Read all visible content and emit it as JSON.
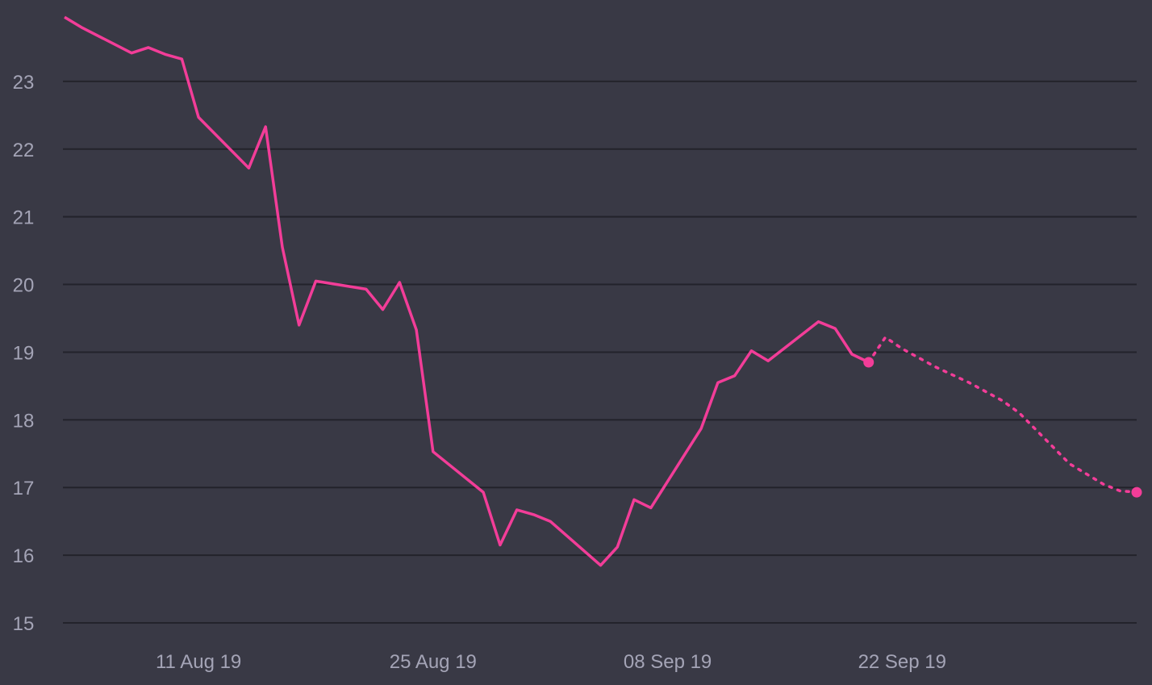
{
  "chart_data": {
    "type": "line",
    "title": "",
    "xlabel": "",
    "ylabel": "",
    "ylim": [
      15,
      24
    ],
    "grid": true,
    "legend": "none",
    "colors": {
      "background": "#393945",
      "grid": "#23232b",
      "line": "#f23d98",
      "tick_text": "#a4a4b6"
    },
    "y_ticks": [
      "15",
      "16",
      "17",
      "18",
      "19",
      "20",
      "21",
      "22",
      "23"
    ],
    "x_ticks": [
      {
        "date": "2019-08-11",
        "label": "11 Aug 19"
      },
      {
        "date": "2019-08-25",
        "label": "25 Aug 19"
      },
      {
        "date": "2019-09-08",
        "label": "08 Sep 19"
      },
      {
        "date": "2019-09-22",
        "label": "22 Sep 19"
      }
    ],
    "x_range": [
      "2019-08-03",
      "2019-10-06"
    ],
    "series": [
      {
        "style": "solid",
        "end_marker": true,
        "points": [
          [
            "2019-08-03",
            23.95
          ],
          [
            "2019-08-04",
            23.8
          ],
          [
            "2019-08-07",
            23.42
          ],
          [
            "2019-08-08",
            23.5
          ],
          [
            "2019-08-09",
            23.4
          ],
          [
            "2019-08-10",
            23.33
          ],
          [
            "2019-08-11",
            22.47
          ],
          [
            "2019-08-14",
            21.72
          ],
          [
            "2019-08-15",
            22.33
          ],
          [
            "2019-08-16",
            20.55
          ],
          [
            "2019-08-17",
            19.4
          ],
          [
            "2019-08-18",
            20.05
          ],
          [
            "2019-08-21",
            19.93
          ],
          [
            "2019-08-22",
            19.63
          ],
          [
            "2019-08-23",
            20.03
          ],
          [
            "2019-08-24",
            19.33
          ],
          [
            "2019-08-25",
            17.53
          ],
          [
            "2019-08-28",
            16.93
          ],
          [
            "2019-08-29",
            16.15
          ],
          [
            "2019-08-30",
            16.67
          ],
          [
            "2019-08-31",
            16.6
          ],
          [
            "2019-09-01",
            16.5
          ],
          [
            "2019-09-04",
            15.85
          ],
          [
            "2019-09-05",
            16.12
          ],
          [
            "2019-09-06",
            16.82
          ],
          [
            "2019-09-07",
            16.7
          ],
          [
            "2019-09-10",
            17.87
          ],
          [
            "2019-09-11",
            18.55
          ],
          [
            "2019-09-12",
            18.65
          ],
          [
            "2019-09-13",
            19.02
          ],
          [
            "2019-09-14",
            18.87
          ],
          [
            "2019-09-17",
            19.45
          ],
          [
            "2019-09-18",
            19.35
          ],
          [
            "2019-09-19",
            18.97
          ],
          [
            "2019-09-20",
            18.85
          ]
        ]
      },
      {
        "style": "dotted",
        "end_marker": true,
        "points": [
          [
            "2019-09-20",
            18.85
          ],
          [
            "2019-09-21",
            19.22
          ],
          [
            "2019-09-22",
            19.05
          ],
          [
            "2019-09-24",
            18.78
          ],
          [
            "2019-09-26",
            18.55
          ],
          [
            "2019-09-28",
            18.28
          ],
          [
            "2019-09-29",
            18.1
          ],
          [
            "2019-09-30",
            17.85
          ],
          [
            "2019-10-01",
            17.6
          ],
          [
            "2019-10-02",
            17.35
          ],
          [
            "2019-10-03",
            17.2
          ],
          [
            "2019-10-04",
            17.05
          ],
          [
            "2019-10-05",
            16.95
          ],
          [
            "2019-10-06",
            16.93
          ]
        ]
      }
    ]
  }
}
